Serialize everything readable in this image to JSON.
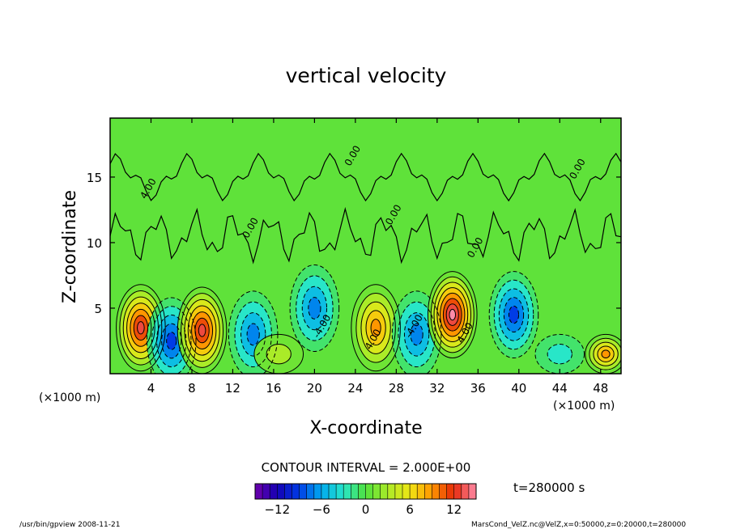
{
  "chart_data": {
    "type": "heatmap",
    "title": "vertical velocity",
    "xlabel": "X-coordinate",
    "ylabel": "Z-coordinate",
    "x_unit_left": "(×1000 m)",
    "x_unit_right": "(×1000 m)",
    "y_unit": "(×1000 m)",
    "xlim": [
      0,
      50
    ],
    "ylim": [
      0,
      19.5
    ],
    "x_ticks": [
      4,
      8,
      12,
      16,
      20,
      24,
      28,
      32,
      36,
      40,
      44,
      48
    ],
    "y_ticks": [
      5,
      10,
      15
    ],
    "contour_interval_label": "CONTOUR INTERVAL = 2.000E+00",
    "time_label": "t=280000 s",
    "contour_labels": [
      "0.00",
      "0.00",
      "0.00",
      "0.00",
      "0.00",
      "-4.00",
      "-4.00",
      "4.00",
      "4.00",
      "4.00"
    ],
    "colorbar": {
      "range": [
        -15,
        15
      ],
      "ticks": [
        -12,
        -6,
        0,
        6,
        12
      ],
      "tick_labels": [
        "−12",
        "−6",
        "0",
        "6",
        "12"
      ]
    },
    "cells": [
      {
        "x": 3,
        "z": 3.5,
        "w": 12
      },
      {
        "x": 6,
        "z": 2.5,
        "w": -9
      },
      {
        "x": 9,
        "z": 3.3,
        "w": 13
      },
      {
        "x": 14,
        "z": 3.0,
        "w": -6
      },
      {
        "x": 16.5,
        "z": 1.5,
        "w": 2
      },
      {
        "x": 20,
        "z": 5.0,
        "w": -6
      },
      {
        "x": 26,
        "z": 3.5,
        "w": 8
      },
      {
        "x": 30,
        "z": 3.0,
        "w": -6
      },
      {
        "x": 33.5,
        "z": 4.5,
        "w": 14
      },
      {
        "x": 39.5,
        "z": 4.5,
        "w": -9
      },
      {
        "x": 44,
        "z": 1.5,
        "w": -3
      },
      {
        "x": 48.5,
        "z": 1.5,
        "w": 8
      }
    ]
  },
  "footer": {
    "left": "/usr/bin/gpview   2008-11-21",
    "right": "MarsCond_VelZ.nc@VelZ,x=0:50000,z=0:20000,t=280000"
  }
}
